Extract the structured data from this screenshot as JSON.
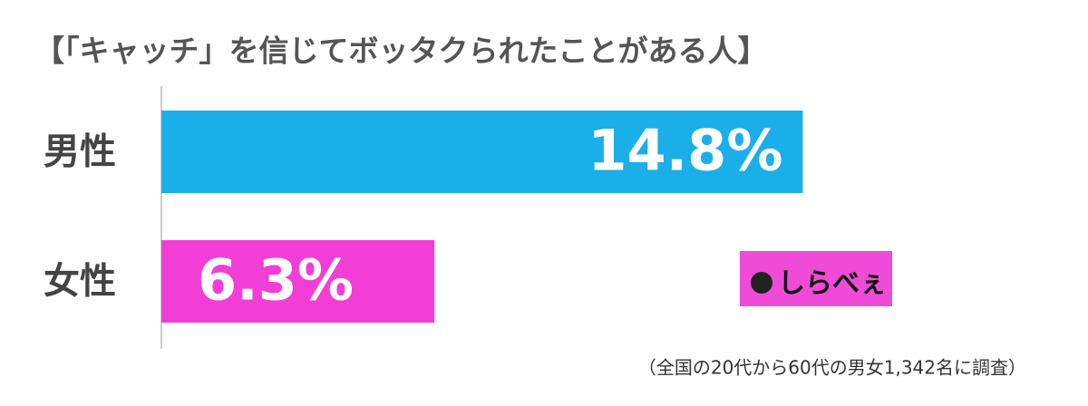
{
  "chart_data": {
    "type": "barh",
    "title": "【「キャッチ」を信じてボッタクられたことがある人】",
    "categories": [
      "男性",
      "女性"
    ],
    "values": [
      14.8,
      6.3
    ],
    "value_labels": [
      "14.8%",
      "6.3%"
    ],
    "colors": [
      "#1aafe8",
      "#f23ed6"
    ],
    "note": "（全国の20代から60代の男女1,342名に調査）",
    "logo": "しらべぇ"
  }
}
